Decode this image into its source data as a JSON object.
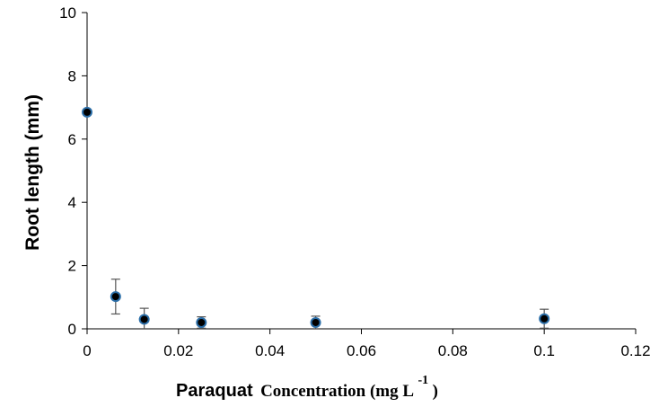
{
  "chart_data": {
    "type": "scatter",
    "title": "",
    "ylabel": "Root length (mm)",
    "xlabel": {
      "bold_part": "Paraquat",
      "serif_part": "Concentration (mg L",
      "superscript": "-1",
      "closing": ")"
    },
    "xlim": [
      0,
      0.12
    ],
    "ylim": [
      0,
      10
    ],
    "x_ticks": [
      "0",
      "0.02",
      "0.04",
      "0.06",
      "0.08",
      "0.1",
      "0.12"
    ],
    "y_ticks": [
      "0",
      "2",
      "4",
      "6",
      "8",
      "10"
    ],
    "grid": false,
    "legend": "none",
    "series": [
      {
        "points": [
          {
            "x": 0,
            "y": 6.85,
            "err": 0
          },
          {
            "x": 0.00625,
            "y": 1.02,
            "err": 0.55
          },
          {
            "x": 0.0125,
            "y": 0.3,
            "err": 0.35
          },
          {
            "x": 0.025,
            "y": 0.2,
            "err": 0.18
          },
          {
            "x": 0.05,
            "y": 0.2,
            "err": 0.2
          },
          {
            "x": 0.1,
            "y": 0.32,
            "err": 0.3
          }
        ]
      }
    ],
    "marker_fill": "#000000",
    "marker_stroke": "#2b6ea8"
  }
}
